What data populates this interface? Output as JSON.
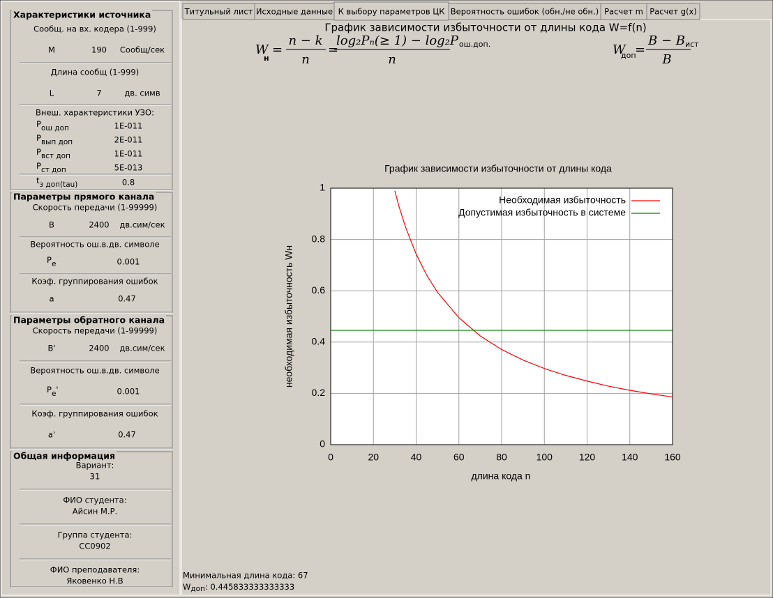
{
  "tabs": [
    "Титульный лист",
    "Исходные данные",
    "К выбору параметров ЦК",
    "Вероятность ошибок (обн./не обн.)",
    "Расчет m",
    "Расчет g(x)"
  ],
  "selected_tab": 2,
  "groups": [
    {
      "title": "Характеристики источника",
      "items": [
        {
          "text": "Сообщ. на вх. кодера (1-999)"
        },
        {
          "label": "M",
          "value": 190,
          "unit": "Сообщ/сек"
        },
        {
          "text": "Длина сообщ (1-999)"
        },
        {
          "label": "L",
          "value": 7,
          "unit": "дв. симв"
        },
        {
          "text": "Внеш. характеристики УЗО:"
        },
        {
          "label": "P",
          "label_sub": "ош доп",
          "value": "1E-011"
        },
        {
          "label": "P",
          "label_sub": "вып доп",
          "value": "2E-011"
        },
        {
          "label": "P",
          "label_sub": "вст доп",
          "value": "1E-011"
        },
        {
          "label": "P",
          "label_sub": "ст доп",
          "value": "5E-013"
        },
        {
          "label": "t",
          "label_sub": "з доп(tau)",
          "value": 0.8
        }
      ]
    },
    {
      "title": "Параметры прямого канала",
      "items": [
        {
          "text": "Скорость передачи (1-99999)"
        },
        {
          "label": "B",
          "value": 2400,
          "unit": "дв.сим/сек"
        },
        {
          "text": "Вероятность ош.в.дв. символе"
        },
        {
          "label": "P",
          "label_sub": "e",
          "value": 0.001
        },
        {
          "text": "Коэф. группирования ошибок"
        },
        {
          "label": "a",
          "value": 0.47
        }
      ]
    },
    {
      "title": "Параметры обратного канала",
      "items": [
        {
          "text": "Скорость передачи (1-99999)"
        },
        {
          "label": "B'",
          "value": 2400,
          "unit": "дв.сим/сек"
        },
        {
          "text": "Вероятность ош.в.дв. символе"
        },
        {
          "label": "P",
          "label_sub": "e",
          "label_post": "'",
          "value": 0.001
        },
        {
          "text": "Коэф. группирования ошибок"
        },
        {
          "label": "a'",
          "value": 0.47
        }
      ]
    },
    {
      "title": "Общая информация",
      "items": [
        {
          "text": "Вариант:"
        },
        {
          "text": "31"
        },
        {
          "text": "ФИО студента:"
        },
        {
          "text": "Айсин М.Р."
        },
        {
          "text": "Группа студента:"
        },
        {
          "text": "СС0902"
        },
        {
          "text": "ФИО преподавателя:"
        },
        {
          "text": "Яковенко Н.В"
        }
      ]
    }
  ],
  "heading": "График зависимости избыточности от длины кода W=f(n)",
  "formula1": {
    "lhs": "W",
    "lhs_sub": "н",
    "eq": "=",
    "frac1_num": "n − k",
    "frac1_den": "n",
    "frac2_num": "log₂Pₙ(≥ 1) − log₂P",
    "frac2_num_sub": "ош.доп.",
    "frac2_den": "n"
  },
  "formula2": {
    "lhs": "W",
    "lhs_sub": "доп",
    "eq": "=",
    "num": "B − B",
    "num_sub": "ист",
    "den": "B"
  },
  "chart_data": {
    "type": "line",
    "title": "График зависимости избыточности от длины кода",
    "xlabel": "длина кода n",
    "ylabel": "необходимая избыточность Wн",
    "xlim": [
      0,
      160
    ],
    "ylim": [
      0,
      1
    ],
    "xticks": [
      0,
      20,
      40,
      60,
      80,
      100,
      120,
      140,
      160
    ],
    "yticks": [
      0,
      0.2,
      0.4,
      0.6,
      0.8,
      1
    ],
    "grid": true,
    "legend": "upper right",
    "series": [
      {
        "name": "Необходимая избыточность",
        "color": "#ff0000",
        "x": [
          30,
          32,
          35,
          40,
          45,
          50,
          60,
          70,
          80,
          90,
          100,
          110,
          120,
          130,
          140,
          150,
          160
        ],
        "values": [
          0.99,
          0.928,
          0.849,
          0.743,
          0.66,
          0.594,
          0.495,
          0.424,
          0.371,
          0.33,
          0.297,
          0.27,
          0.248,
          0.228,
          0.212,
          0.198,
          0.186
        ]
      },
      {
        "name": "Допустимая избыточность в системе",
        "color": "#008000",
        "x": [
          0,
          160
        ],
        "values": [
          0.446,
          0.446
        ]
      }
    ]
  },
  "footer": {
    "min_length": "Минимальная длина кода: 67",
    "w_label": "W",
    "w_sub": "доп",
    "w_value": ": 0.445833333333333"
  }
}
